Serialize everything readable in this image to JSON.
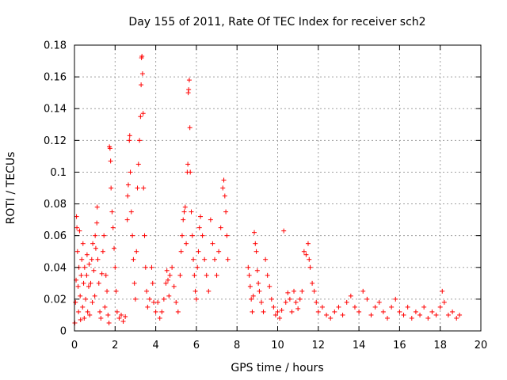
{
  "chart_data": {
    "type": "scatter",
    "title": "Day 155 of 2011, Rate Of TEC Index for receiver sch2",
    "xlabel": "GPS time / hours",
    "ylabel": "ROTI / TECUs",
    "xlim": [
      0,
      20
    ],
    "ylim": [
      0,
      0.18
    ],
    "x_ticks": [
      "0",
      "2",
      "4",
      "6",
      "8",
      "10",
      "12",
      "14",
      "16",
      "18",
      "20"
    ],
    "y_ticks": [
      "0",
      "0.02",
      "0.04",
      "0.06",
      "0.08",
      "0.1",
      "0.12",
      "0.14",
      "0.16",
      "0.18"
    ],
    "grid": true,
    "marker": "+",
    "marker_color": "#ff0000",
    "series": [
      {
        "points": [
          [
            0.02,
            0.005
          ],
          [
            0.05,
            0.018
          ],
          [
            0.08,
            0.032
          ],
          [
            0.1,
            0.072
          ],
          [
            0.12,
            0.065
          ],
          [
            0.15,
            0.05
          ],
          [
            0.18,
            0.028
          ],
          [
            0.2,
            0.012
          ],
          [
            0.22,
            0.04
          ],
          [
            0.25,
            0.063
          ],
          [
            0.28,
            0.022
          ],
          [
            0.3,
            0.007
          ],
          [
            0.33,
            0.035
          ],
          [
            0.36,
            0.045
          ],
          [
            0.4,
            0.015
          ],
          [
            0.42,
            0.055
          ],
          [
            0.45,
            0.03
          ],
          [
            0.48,
            0.008
          ],
          [
            0.5,
            0.04
          ],
          [
            0.55,
            0.02
          ],
          [
            0.6,
            0.035
          ],
          [
            0.62,
            0.048
          ],
          [
            0.65,
            0.012
          ],
          [
            0.7,
            0.028
          ],
          [
            0.72,
            0.042
          ],
          [
            0.75,
            0.01
          ],
          [
            0.8,
            0.03
          ],
          [
            0.85,
            0.045
          ],
          [
            0.88,
            0.018
          ],
          [
            0.9,
            0.055
          ],
          [
            0.95,
            0.038
          ],
          [
            1.0,
            0.022
          ],
          [
            1.02,
            0.06
          ],
          [
            1.05,
            0.052
          ],
          [
            1.1,
            0.068
          ],
          [
            1.12,
            0.078
          ],
          [
            1.15,
            0.045
          ],
          [
            1.2,
            0.03
          ],
          [
            1.25,
            0.012
          ],
          [
            1.3,
            0.008
          ],
          [
            1.35,
            0.036
          ],
          [
            1.4,
            0.05
          ],
          [
            1.45,
            0.06
          ],
          [
            1.5,
            0.015
          ],
          [
            1.55,
            0.035
          ],
          [
            1.6,
            0.025
          ],
          [
            1.65,
            0.01
          ],
          [
            1.7,
            0.005
          ],
          [
            1.72,
            0.116
          ],
          [
            1.75,
            0.115
          ],
          [
            1.78,
            0.107
          ],
          [
            1.8,
            0.09
          ],
          [
            1.85,
            0.075
          ],
          [
            1.9,
            0.065
          ],
          [
            1.95,
            0.052
          ],
          [
            2.0,
            0.04
          ],
          [
            2.05,
            0.025
          ],
          [
            2.1,
            0.012
          ],
          [
            2.2,
            0.008
          ],
          [
            2.3,
            0.01
          ],
          [
            2.4,
            0.006
          ],
          [
            2.5,
            0.009
          ],
          [
            2.6,
            0.07
          ],
          [
            2.62,
            0.085
          ],
          [
            2.65,
            0.092
          ],
          [
            2.7,
            0.12
          ],
          [
            2.72,
            0.123
          ],
          [
            2.75,
            0.1
          ],
          [
            2.8,
            0.075
          ],
          [
            2.85,
            0.06
          ],
          [
            2.9,
            0.045
          ],
          [
            2.95,
            0.03
          ],
          [
            3.0,
            0.02
          ],
          [
            3.05,
            0.05
          ],
          [
            3.1,
            0.09
          ],
          [
            3.15,
            0.105
          ],
          [
            3.2,
            0.12
          ],
          [
            3.25,
            0.135
          ],
          [
            3.28,
            0.155
          ],
          [
            3.3,
            0.172
          ],
          [
            3.32,
            0.173
          ],
          [
            3.35,
            0.162
          ],
          [
            3.38,
            0.137
          ],
          [
            3.4,
            0.09
          ],
          [
            3.45,
            0.06
          ],
          [
            3.5,
            0.04
          ],
          [
            3.55,
            0.025
          ],
          [
            3.6,
            0.015
          ],
          [
            3.7,
            0.02
          ],
          [
            3.8,
            0.04
          ],
          [
            3.85,
            0.03
          ],
          [
            3.9,
            0.018
          ],
          [
            4.0,
            0.012
          ],
          [
            4.1,
            0.018
          ],
          [
            4.2,
            0.008
          ],
          [
            4.3,
            0.012
          ],
          [
            4.4,
            0.02
          ],
          [
            4.5,
            0.03
          ],
          [
            4.55,
            0.038
          ],
          [
            4.6,
            0.032
          ],
          [
            4.65,
            0.022
          ],
          [
            4.7,
            0.035
          ],
          [
            4.8,
            0.04
          ],
          [
            4.9,
            0.028
          ],
          [
            5.0,
            0.018
          ],
          [
            5.1,
            0.012
          ],
          [
            5.2,
            0.035
          ],
          [
            5.25,
            0.05
          ],
          [
            5.3,
            0.06
          ],
          [
            5.35,
            0.07
          ],
          [
            5.4,
            0.075
          ],
          [
            5.45,
            0.078
          ],
          [
            5.5,
            0.055
          ],
          [
            5.55,
            0.1
          ],
          [
            5.58,
            0.105
          ],
          [
            5.6,
            0.15
          ],
          [
            5.62,
            0.152
          ],
          [
            5.65,
            0.158
          ],
          [
            5.68,
            0.128
          ],
          [
            5.7,
            0.1
          ],
          [
            5.75,
            0.075
          ],
          [
            5.8,
            0.06
          ],
          [
            5.85,
            0.045
          ],
          [
            5.9,
            0.035
          ],
          [
            5.95,
            0.025
          ],
          [
            6.0,
            0.02
          ],
          [
            6.05,
            0.04
          ],
          [
            6.1,
            0.05
          ],
          [
            6.15,
            0.065
          ],
          [
            6.2,
            0.072
          ],
          [
            6.3,
            0.06
          ],
          [
            6.4,
            0.045
          ],
          [
            6.5,
            0.035
          ],
          [
            6.6,
            0.025
          ],
          [
            6.7,
            0.07
          ],
          [
            6.8,
            0.055
          ],
          [
            6.9,
            0.045
          ],
          [
            7.0,
            0.035
          ],
          [
            7.1,
            0.05
          ],
          [
            7.2,
            0.065
          ],
          [
            7.3,
            0.09
          ],
          [
            7.35,
            0.095
          ],
          [
            7.4,
            0.085
          ],
          [
            7.45,
            0.075
          ],
          [
            7.5,
            0.06
          ],
          [
            7.55,
            0.045
          ],
          [
            8.55,
            0.04
          ],
          [
            8.6,
            0.035
          ],
          [
            8.65,
            0.028
          ],
          [
            8.7,
            0.02
          ],
          [
            8.75,
            0.012
          ],
          [
            8.8,
            0.022
          ],
          [
            8.85,
            0.062
          ],
          [
            8.9,
            0.055
          ],
          [
            8.95,
            0.05
          ],
          [
            9.0,
            0.038
          ],
          [
            9.05,
            0.03
          ],
          [
            9.1,
            0.025
          ],
          [
            9.2,
            0.018
          ],
          [
            9.3,
            0.012
          ],
          [
            9.4,
            0.045
          ],
          [
            9.5,
            0.035
          ],
          [
            9.6,
            0.028
          ],
          [
            9.7,
            0.02
          ],
          [
            9.8,
            0.015
          ],
          [
            9.9,
            0.01
          ],
          [
            10.0,
            0.012
          ],
          [
            10.1,
            0.008
          ],
          [
            10.2,
            0.013
          ],
          [
            10.3,
            0.063
          ],
          [
            10.4,
            0.018
          ],
          [
            10.5,
            0.024
          ],
          [
            10.6,
            0.02
          ],
          [
            10.7,
            0.012
          ],
          [
            10.8,
            0.025
          ],
          [
            10.9,
            0.018
          ],
          [
            11.0,
            0.014
          ],
          [
            11.1,
            0.02
          ],
          [
            11.2,
            0.025
          ],
          [
            11.3,
            0.05
          ],
          [
            11.4,
            0.048
          ],
          [
            11.5,
            0.055
          ],
          [
            11.55,
            0.045
          ],
          [
            11.6,
            0.04
          ],
          [
            11.7,
            0.03
          ],
          [
            11.8,
            0.025
          ],
          [
            11.9,
            0.018
          ],
          [
            12.0,
            0.012
          ],
          [
            12.2,
            0.015
          ],
          [
            12.4,
            0.01
          ],
          [
            12.6,
            0.008
          ],
          [
            12.8,
            0.012
          ],
          [
            13.0,
            0.015
          ],
          [
            13.2,
            0.01
          ],
          [
            13.4,
            0.018
          ],
          [
            13.6,
            0.022
          ],
          [
            13.8,
            0.015
          ],
          [
            14.0,
            0.012
          ],
          [
            14.2,
            0.025
          ],
          [
            14.4,
            0.02
          ],
          [
            14.6,
            0.01
          ],
          [
            14.8,
            0.015
          ],
          [
            15.0,
            0.018
          ],
          [
            15.2,
            0.012
          ],
          [
            15.4,
            0.008
          ],
          [
            15.6,
            0.015
          ],
          [
            15.8,
            0.02
          ],
          [
            16.0,
            0.012
          ],
          [
            16.2,
            0.01
          ],
          [
            16.4,
            0.015
          ],
          [
            16.6,
            0.008
          ],
          [
            16.8,
            0.012
          ],
          [
            17.0,
            0.01
          ],
          [
            17.2,
            0.015
          ],
          [
            17.4,
            0.008
          ],
          [
            17.6,
            0.012
          ],
          [
            17.8,
            0.01
          ],
          [
            18.0,
            0.015
          ],
          [
            18.1,
            0.025
          ],
          [
            18.2,
            0.018
          ],
          [
            18.4,
            0.01
          ],
          [
            18.6,
            0.012
          ],
          [
            18.8,
            0.008
          ],
          [
            18.95,
            0.01
          ]
        ]
      }
    ]
  }
}
